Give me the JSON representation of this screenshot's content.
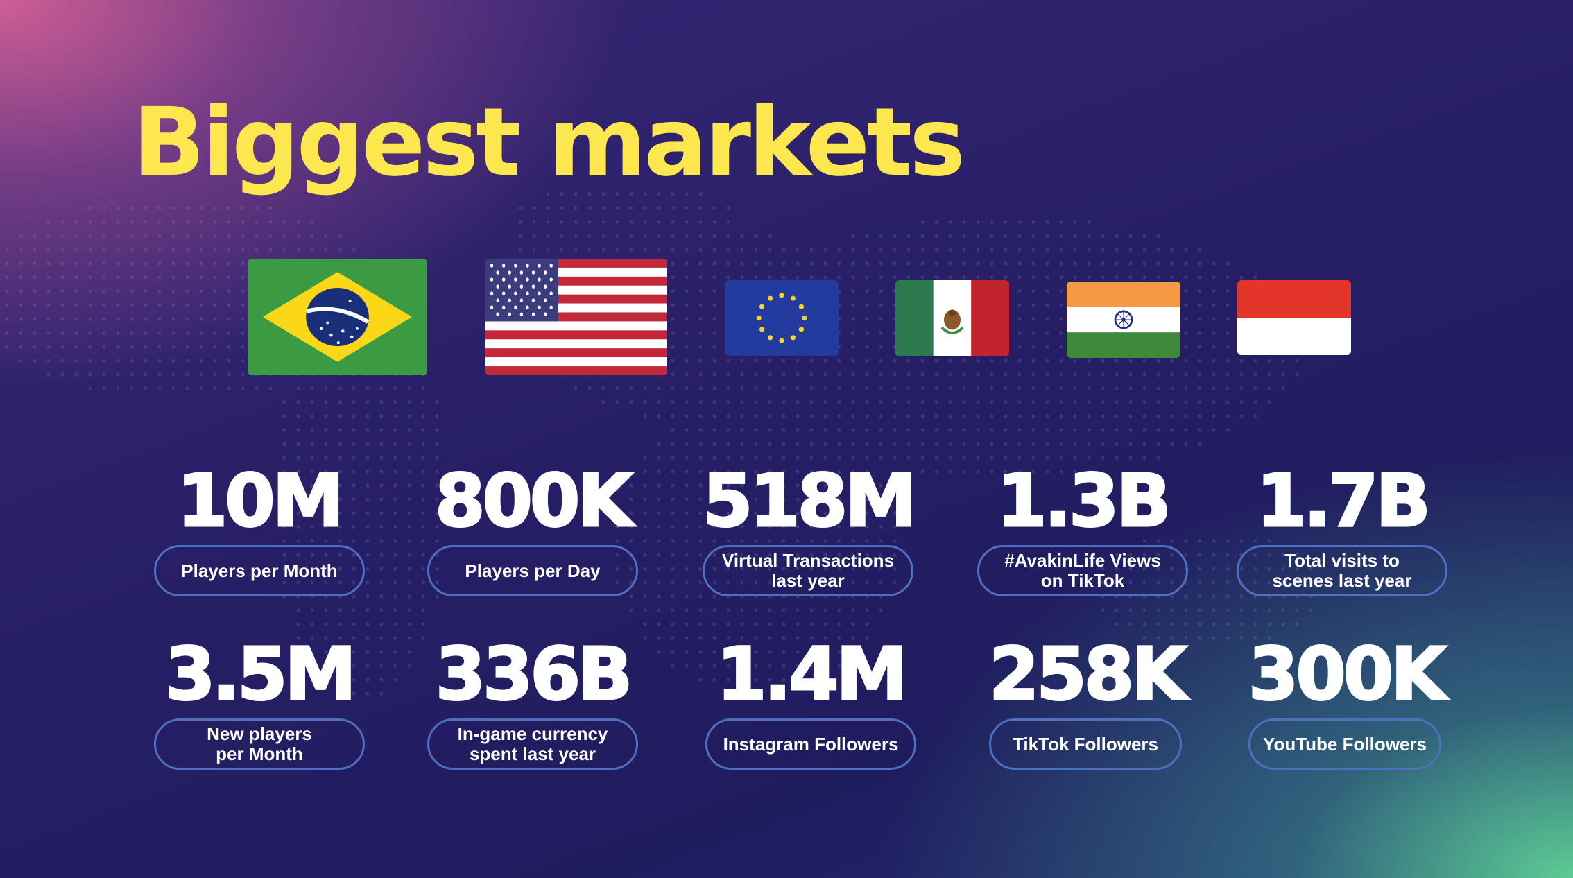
{
  "title": "Biggest markets",
  "flags": [
    {
      "country": "Brazil",
      "icon": "brazil-flag-icon"
    },
    {
      "country": "United States",
      "icon": "us-flag-icon"
    },
    {
      "country": "European Union",
      "icon": "eu-flag-icon"
    },
    {
      "country": "Mexico",
      "icon": "mexico-flag-icon"
    },
    {
      "country": "India",
      "icon": "india-flag-icon"
    },
    {
      "country": "Indonesia",
      "icon": "indonesia-flag-icon"
    }
  ],
  "stats": [
    {
      "value": "10M",
      "label": "Players per Month"
    },
    {
      "value": "800K",
      "label": "Players per Day"
    },
    {
      "value": "518M",
      "label": "Virtual Transactions\nlast year"
    },
    {
      "value": "1.3B",
      "label": "#AvakinLife Views\non TikTok"
    },
    {
      "value": "1.7B",
      "label": "Total visits to\nscenes last year"
    },
    {
      "value": "3.5M",
      "label": "New players\nper Month"
    },
    {
      "value": "336B",
      "label": "In-game currency\nspent last year"
    },
    {
      "value": "1.4M",
      "label": "Instagram Followers"
    },
    {
      "value": "258K",
      "label": "TikTok Followers"
    },
    {
      "value": "300K",
      "label": "YouTube Followers"
    }
  ],
  "colors": {
    "title": "#fde74f",
    "text": "#ffffff",
    "pill_border": "#4f6fc0",
    "background_dark": "#221d63",
    "background_pink": "#d66096",
    "background_green": "#60d496"
  }
}
